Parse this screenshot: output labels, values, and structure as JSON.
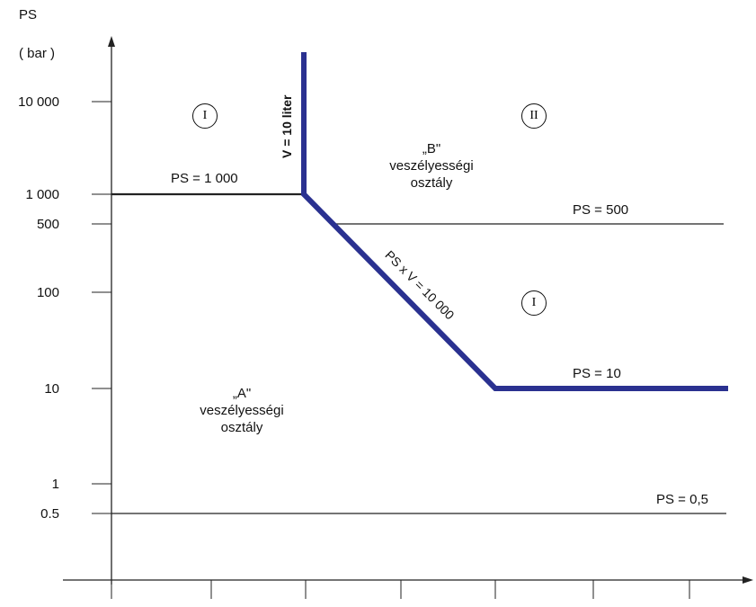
{
  "axis": {
    "y_title": "PS",
    "y_unit": "( bar )",
    "y_ticks": [
      "10 000",
      "1 000",
      "500",
      "100",
      "10",
      "1",
      "0.5"
    ]
  },
  "lines": {
    "ps1000": "PS = 1 000",
    "ps500": "PS = 500",
    "ps10": "PS = 10",
    "ps05": "PS = 0,5",
    "v10": "V = 10 liter",
    "psv": "PS x V = 10 000"
  },
  "regions": {
    "circle_I_top": "I",
    "circle_II": "II",
    "circle_I_mid": "I",
    "class_B": [
      "„B\"",
      "veszélyességi",
      "osztály"
    ],
    "class_A": [
      "„A\"",
      "veszélyességi",
      "osztály"
    ]
  },
  "colors": {
    "accent": "#2a3190",
    "line": "#222222"
  }
}
